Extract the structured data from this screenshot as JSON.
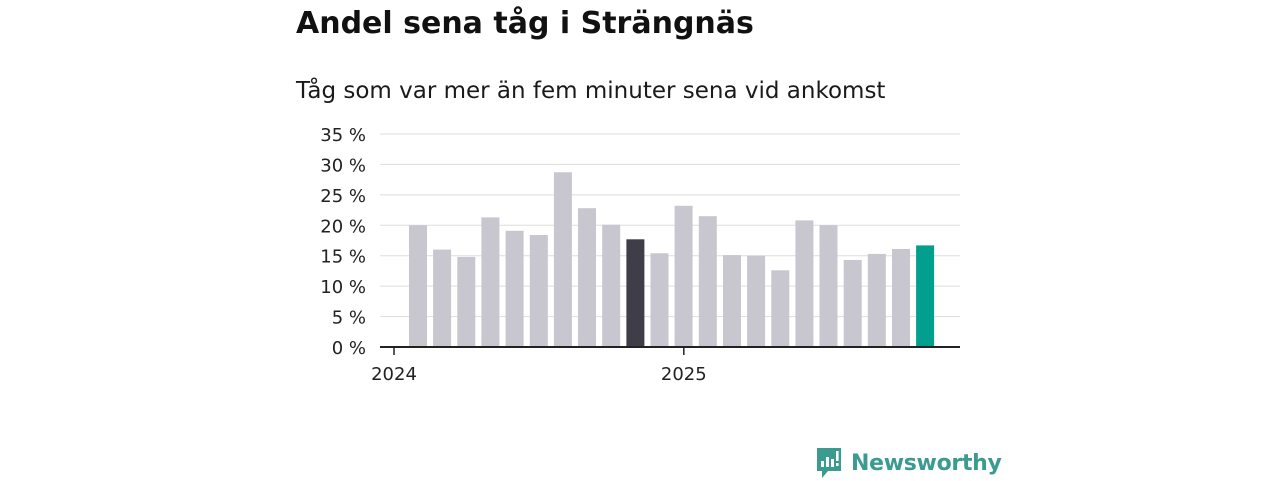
{
  "chart_data": {
    "type": "bar",
    "title": "Andel sena tåg i Strängnäs",
    "subtitle": "Tåg som var mer än fem minuter sena vid ankomst",
    "xlabel": "",
    "ylabel": "",
    "ylim": [
      0,
      35
    ],
    "yticks": [
      0,
      5,
      10,
      15,
      20,
      25,
      30,
      35
    ],
    "ytick_labels": [
      "0 %",
      "5 %",
      "10 %",
      "15 %",
      "20 %",
      "25 %",
      "30 %",
      "35 %"
    ],
    "x_ticks": [
      {
        "label": "2024",
        "index": 0
      },
      {
        "label": "2025",
        "index": 12
      }
    ],
    "grid": true,
    "values": [
      20.0,
      16.0,
      14.8,
      21.3,
      19.1,
      18.4,
      28.7,
      22.8,
      20.1,
      17.7,
      15.4,
      23.2,
      21.5,
      15.1,
      15.0,
      12.6,
      20.8,
      20.0,
      14.3,
      15.3,
      16.1,
      16.7
    ],
    "highlight_index": 9,
    "latest_index": 21,
    "colors": {
      "bar": "#c8c6ce",
      "highlight": "#3f3d48",
      "latest": "#009f8e",
      "grid": "#dddddd",
      "axis": "#222222",
      "text": "#222222"
    }
  },
  "brand": {
    "name": "Newsworthy",
    "color": "#3a9b8e"
  }
}
